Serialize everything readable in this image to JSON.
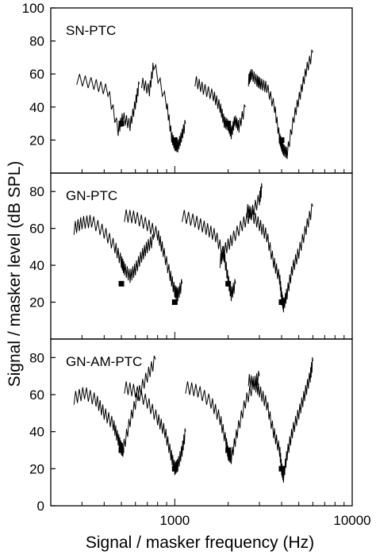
{
  "ylabel": "Signal / masker level (dB SPL)",
  "xlabel": "Signal / masker frequency (Hz)",
  "x_ticks": [
    {
      "value": 1000,
      "label": "1000"
    },
    {
      "value": 10000,
      "label": "10000"
    }
  ],
  "signal_frequencies": [
    500,
    1000,
    2000,
    4000
  ],
  "colors": {
    "line": "#000000",
    "axis": "#000000",
    "signal_marker": "#000000"
  },
  "chart_data": [
    {
      "type": "line",
      "title": "SN-PTC",
      "x_scale": "log",
      "xlim": [
        200,
        10000
      ],
      "ylim": [
        0,
        100
      ],
      "y_ticks": [
        20,
        40,
        60,
        80,
        100
      ],
      "signal_markers": {
        "x": [
          500,
          1000,
          2000,
          4000
        ],
        "y": [
          30,
          20,
          30,
          20
        ]
      },
      "series": [
        {
          "x": [
            280,
            350,
            420,
            480,
            510,
            560,
            600,
            630
          ],
          "y": [
            57,
            54,
            50,
            26,
            34,
            29,
            42,
            54
          ]
        },
        {
          "x": [
            650,
            720,
            760,
            900,
            960,
            1000,
            1040,
            1090,
            1150
          ],
          "y": [
            55,
            50,
            66,
            42,
            22,
            17,
            16,
            22,
            30
          ]
        },
        {
          "x": [
            1300,
            1450,
            1650,
            1800,
            1900,
            2000,
            2080,
            2180,
            2300,
            2500
          ],
          "y": [
            56,
            51,
            47,
            40,
            31,
            29,
            24,
            32,
            28,
            40
          ]
        },
        {
          "x": [
            2600,
            2700,
            2900,
            3050,
            3300,
            3650,
            3900,
            4000,
            4100,
            4300,
            4700,
            5100,
            5500,
            6000
          ],
          "y": [
            56,
            60,
            56,
            54,
            52,
            40,
            21,
            17,
            14,
            12,
            34,
            48,
            62,
            73
          ]
        }
      ]
    },
    {
      "type": "line",
      "title": "GN-PTC",
      "x_scale": "log",
      "xlim": [
        200,
        10000
      ],
      "ylim": [
        0,
        90
      ],
      "y_ticks": [
        20,
        40,
        60,
        80
      ],
      "signal_markers": {
        "x": [
          500,
          1000,
          2000,
          4000
        ],
        "y": [
          30,
          20,
          30,
          20
        ]
      },
      "series": [
        {
          "x": [
            270,
            300,
            340,
            400,
            460,
            500,
            520,
            560,
            600,
            650,
            700,
            760
          ],
          "y": [
            60,
            63,
            64,
            58,
            50,
            42,
            38,
            34,
            38,
            45,
            50,
            54
          ]
        },
        {
          "x": [
            520,
            600,
            700,
            800,
            860,
            940,
            1000,
            1040,
            1100
          ],
          "y": [
            67,
            66,
            62,
            57,
            48,
            35,
            26,
            24,
            30
          ]
        },
        {
          "x": [
            1100,
            1300,
            1500,
            1700,
            1900,
            2000,
            2080,
            2200
          ],
          "y": [
            67,
            64,
            60,
            56,
            45,
            32,
            24,
            30
          ]
        },
        {
          "x": [
            1800,
            1900,
            2100,
            2400,
            2700,
            3000,
            3100
          ],
          "y": [
            42,
            48,
            54,
            62,
            68,
            76,
            82
          ]
        },
        {
          "x": [
            2550,
            2700,
            3000,
            3300,
            3600,
            3900,
            4000,
            4100,
            4300,
            4600,
            5000,
            5500,
            6000
          ],
          "y": [
            70,
            68,
            62,
            56,
            42,
            33,
            23,
            18,
            25,
            38,
            47,
            60,
            72
          ]
        }
      ]
    },
    {
      "type": "line",
      "title": "GN-AM-PTC",
      "x_scale": "log",
      "xlim": [
        200,
        10000
      ],
      "ylim": [
        0,
        90
      ],
      "y_ticks": [
        0,
        20,
        40,
        60,
        80
      ],
      "signal_markers": {
        "x": [
          500,
          1000,
          2000,
          4000
        ],
        "y": [
          30,
          20,
          30,
          20
        ]
      },
      "series": [
        {
          "x": [
            270,
            310,
            360,
            400,
            450,
            480,
            500,
            510,
            560,
            620,
            700,
            780
          ],
          "y": [
            58,
            61,
            57,
            50,
            44,
            36,
            31,
            30,
            46,
            60,
            70,
            79
          ]
        },
        {
          "x": [
            520,
            600,
            700,
            800,
            880,
            950,
            1000,
            1040,
            1100,
            1150
          ],
          "y": [
            64,
            62,
            56,
            47,
            40,
            28,
            20,
            22,
            30,
            40
          ]
        },
        {
          "x": [
            1150,
            1350,
            1600,
            1800,
            1950,
            2000,
            2080,
            2250,
            2500,
            2800,
            3000
          ],
          "y": [
            64,
            62,
            56,
            47,
            34,
            28,
            26,
            40,
            56,
            66,
            70
          ]
        },
        {
          "x": [
            2600,
            2800,
            3000,
            3300,
            3600,
            3900,
            4000,
            4100,
            4300,
            4600,
            5000,
            5400,
            5800,
            6000
          ],
          "y": [
            68,
            66,
            62,
            55,
            40,
            30,
            20,
            16,
            28,
            40,
            50,
            60,
            70,
            78
          ]
        }
      ]
    }
  ]
}
